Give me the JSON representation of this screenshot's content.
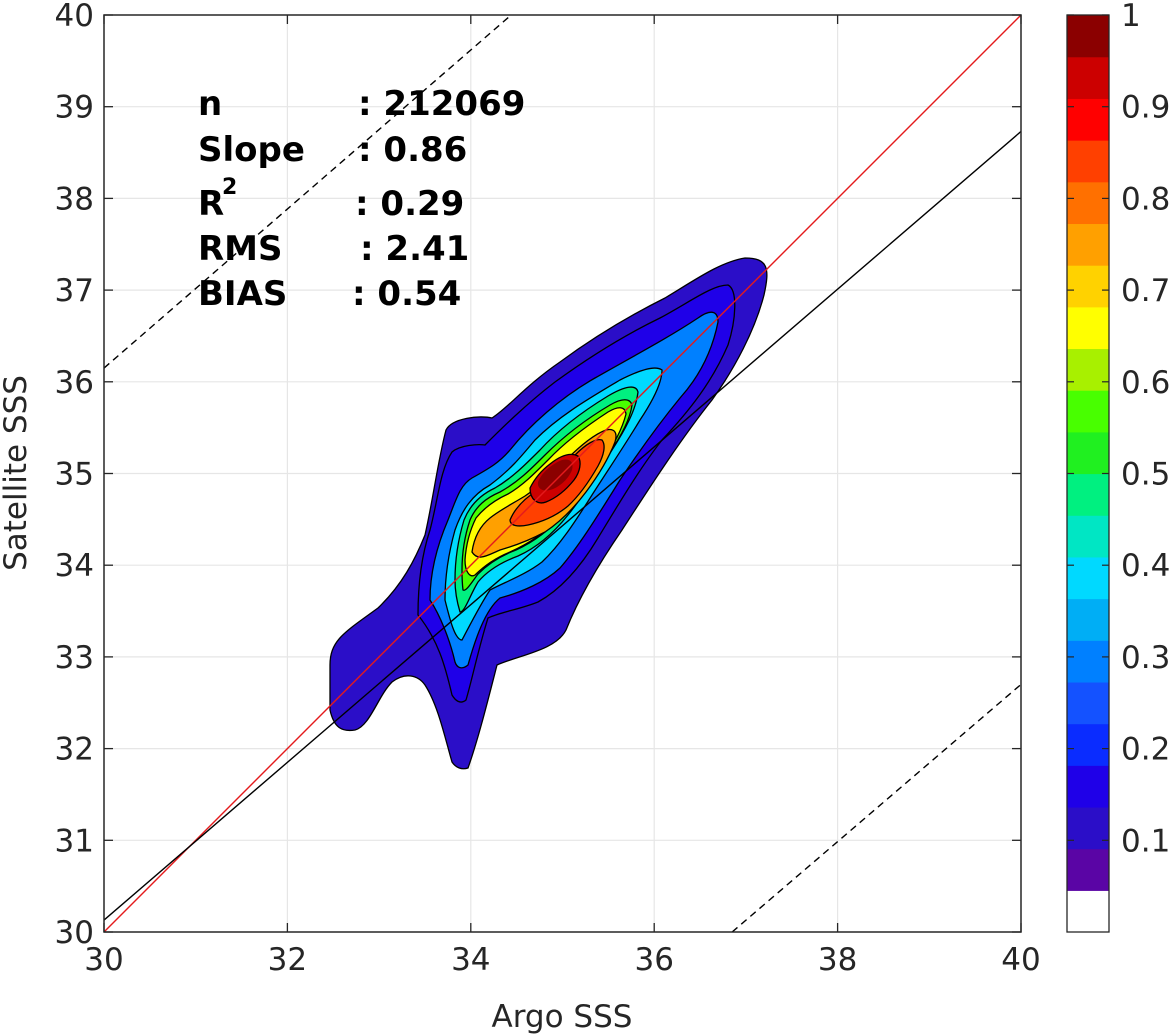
{
  "chart_data": {
    "type": "contour",
    "xlabel": "Argo SSS",
    "ylabel": "Satellite SSS",
    "xlim": [
      30,
      40
    ],
    "ylim": [
      30,
      40
    ],
    "x_ticks": [
      "30",
      "32",
      "34",
      "36",
      "38",
      "40"
    ],
    "y_ticks": [
      "30",
      "31",
      "32",
      "33",
      "34",
      "35",
      "36",
      "37",
      "38",
      "39",
      "40"
    ],
    "grid": true,
    "stats": [
      {
        "label": "n",
        "value": ": 212069"
      },
      {
        "label": "Slope",
        "value": ": 0.86"
      },
      {
        "label": "R",
        "sup": "2",
        "value": ": 0.29"
      },
      {
        "label": "RMS",
        "value": ": 2.41"
      },
      {
        "label": "BIAS",
        "value": ": 0.54"
      }
    ],
    "lines": [
      {
        "kind": "one-to-one",
        "color": "#e41a1c",
        "style": "solid",
        "points": [
          [
            30,
            30
          ],
          [
            40,
            40
          ]
        ]
      },
      {
        "kind": "fit",
        "color": "#000000",
        "style": "solid",
        "points": [
          [
            30,
            30.13
          ],
          [
            40,
            38.73
          ]
        ]
      },
      {
        "kind": "upper-bound",
        "color": "#000000",
        "style": "dashed",
        "points": [
          [
            30,
            36.15
          ],
          [
            34.44,
            40
          ]
        ]
      },
      {
        "kind": "lower-bound",
        "color": "#000000",
        "style": "dashed",
        "points": [
          [
            36.85,
            30
          ],
          [
            40,
            32.7
          ]
        ]
      }
    ],
    "density_peak": {
      "x": 34.95,
      "y": 34.95
    },
    "contour_levels": [
      0.1,
      0.2,
      0.3,
      0.4,
      0.5,
      0.6,
      0.7,
      0.8,
      0.9,
      1.0
    ],
    "colorbar": {
      "ticks": [
        "0.1",
        "0.2",
        "0.3",
        "0.4",
        "0.5",
        "0.6",
        "0.7",
        "0.8",
        "0.9",
        "1"
      ],
      "tick_values": [
        0.1,
        0.2,
        0.3,
        0.4,
        0.5,
        0.6,
        0.7,
        0.8,
        0.9,
        1.0
      ],
      "range": [
        0,
        1
      ],
      "colors": [
        "#ffffff",
        "#5a05a5",
        "#2b0ec8",
        "#1f00e8",
        "#0a2cff",
        "#1452ff",
        "#0080ff",
        "#00aef5",
        "#00d9ff",
        "#00e6c4",
        "#00f080",
        "#20f020",
        "#48ff00",
        "#a8f000",
        "#ffff00",
        "#ffd200",
        "#ffa000",
        "#ff7000",
        "#ff4000",
        "#ff0000",
        "#cc0000",
        "#8b0000"
      ]
    }
  }
}
